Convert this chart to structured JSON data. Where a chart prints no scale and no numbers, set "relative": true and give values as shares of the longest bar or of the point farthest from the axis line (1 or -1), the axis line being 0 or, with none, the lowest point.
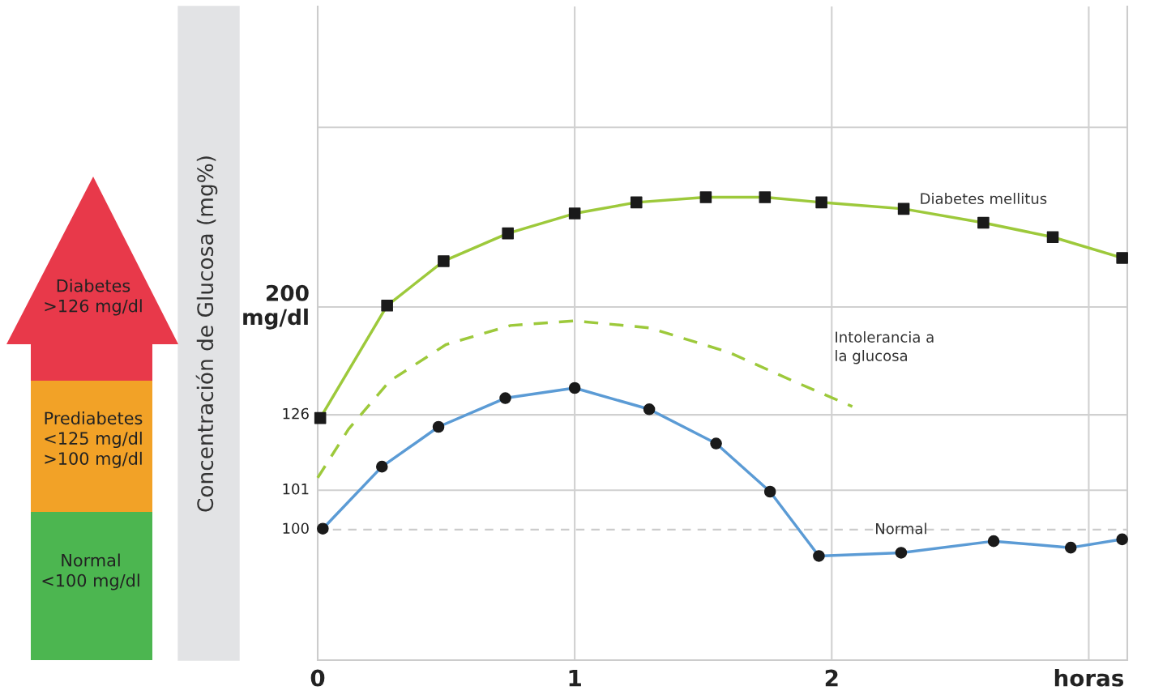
{
  "chart_data": {
    "type": "line",
    "relative": true,
    "ylabel": "Concentración de Glucosa (mg%)",
    "annotations": [
      "Diabetes\n>126 mg/dl",
      "Prediabetes\n<125 mg/dl\n>100 mg/dl",
      "Normal\n<100 mg/dl",
      "100",
      "101",
      "126",
      "200\nmg/dl"
    ],
    "xlim": [
      0,
      3.15
    ],
    "xticks": [
      0,
      1,
      2,
      {
        "value": 3.0,
        "label": "horas"
      }
    ],
    "grid": "x",
    "ref_lines": [
      {
        "axis": "y",
        "value": 0.282,
        "color": "#cccccc",
        "line_style": "dashed"
      },
      {
        "axis": "y",
        "value": 0.367,
        "color": "#d0d0d0",
        "line_style": "solid"
      },
      {
        "axis": "y",
        "value": 0.53,
        "color": "#d0d0d0",
        "line_style": "solid"
      },
      {
        "axis": "y",
        "value": 0.763,
        "color": "#d0d0d0",
        "line_style": "solid"
      },
      {
        "axis": "y",
        "value": 1.151,
        "color": "#d0d0d0",
        "line_style": "solid"
      }
    ],
    "series": [
      {
        "name": "Diabetes mellitus",
        "color": "#9dc93b",
        "marker": "square",
        "line_style": "solid",
        "x": [
          0.01,
          0.27,
          0.49,
          0.74,
          1.0,
          1.24,
          1.51,
          1.74,
          1.96,
          2.28,
          2.59,
          2.86,
          3.13
        ],
        "values": [
          0.523,
          0.766,
          0.862,
          0.922,
          0.965,
          0.989,
          1,
          1,
          0.989,
          0.975,
          0.945,
          0.914,
          0.869
        ]
      },
      {
        "name": "Intolerancia a\nla glucosa",
        "color": "#9dc93b",
        "marker": "none",
        "line_style": "dashed",
        "x": [
          0,
          0.12,
          0.28,
          0.5,
          0.75,
          1.0,
          1.29,
          1.6,
          1.85,
          2.08
        ],
        "values": [
          0.394,
          0.499,
          0.603,
          0.682,
          0.723,
          0.733,
          0.718,
          0.665,
          0.603,
          0.548
        ]
      },
      {
        "name": "Normal",
        "color": "#5b9bd5",
        "marker": "circle",
        "line_style": "solid",
        "x": [
          0.02,
          0.25,
          0.47,
          0.73,
          1.0,
          1.29,
          1.55,
          1.76,
          1.95,
          2.27,
          2.63,
          2.93,
          3.13
        ],
        "values": [
          0.284,
          0.418,
          0.504,
          0.566,
          0.588,
          0.542,
          0.468,
          0.364,
          0.225,
          0.232,
          0.257,
          0.243,
          0.261
        ]
      }
    ]
  }
}
